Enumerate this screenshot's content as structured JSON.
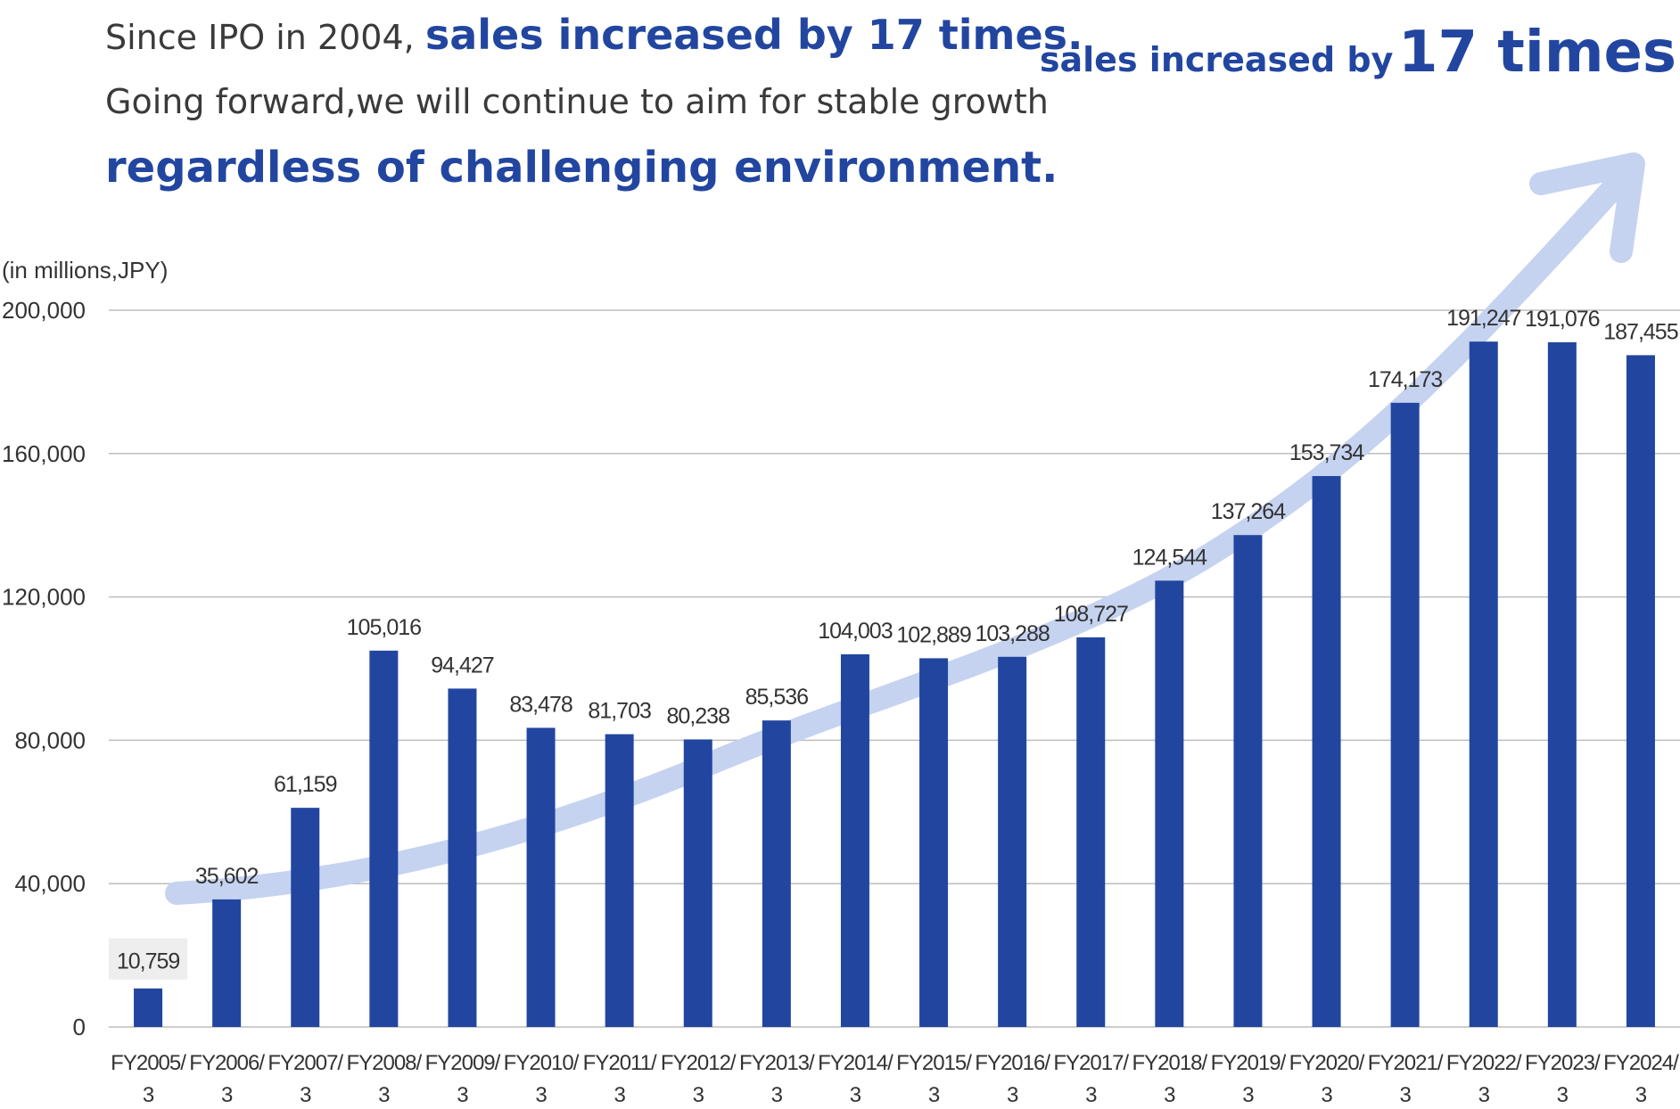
{
  "headline": {
    "line1_prefix": "Since IPO in 2004, ",
    "line1_emphasis": "sales increased by 17 times.",
    "line2": "Going forward,we will continue to aim for stable growth",
    "line3": "regardless of challenging environment."
  },
  "badge": {
    "prefix": "sales increased by",
    "emphasis": "17 times"
  },
  "colors": {
    "bar": "#2246a0",
    "arrow": "#c5d3f0",
    "grid": "#bdbdbd",
    "first_label_bg": "#eeeeee"
  },
  "chart_data": {
    "type": "bar",
    "unit_label": "(in millions,JPY)",
    "categories": [
      "FY2005/3",
      "FY2006/3",
      "FY2007/3",
      "FY2008/3",
      "FY2009/3",
      "FY2010/3",
      "FY2011/3",
      "FY2012/3",
      "FY2013/3",
      "FY2014/3",
      "FY2015/3",
      "FY2016/3",
      "FY2017/3",
      "FY2018/3",
      "FY2019/3",
      "FY2020/3",
      "FY2021/3",
      "FY2022/3",
      "FY2023/3",
      "FY2024/3"
    ],
    "values": [
      10759,
      35602,
      61159,
      105016,
      94427,
      83478,
      81703,
      80238,
      85536,
      104003,
      102889,
      103288,
      108727,
      124544,
      137264,
      153734,
      174173,
      191247,
      191076,
      187455
    ],
    "value_labels": [
      "10,759",
      "35,602",
      "61,159",
      "105,016",
      "94,427",
      "83,478",
      "81,703",
      "80,238",
      "85,536",
      "104,003",
      "102,889",
      "103,288",
      "108,727",
      "124,544",
      "137,264",
      "153,734",
      "174,173",
      "191,247",
      "191,076",
      "187,455"
    ],
    "yticks": [
      0,
      40000,
      80000,
      120000,
      160000,
      200000
    ],
    "ytick_labels": [
      "0",
      "40,000",
      "80,000",
      "120,000",
      "160,000",
      "200,000"
    ],
    "ylim": [
      0,
      200000
    ],
    "grid": true,
    "legend": "none",
    "annotation": "growth arrow"
  }
}
